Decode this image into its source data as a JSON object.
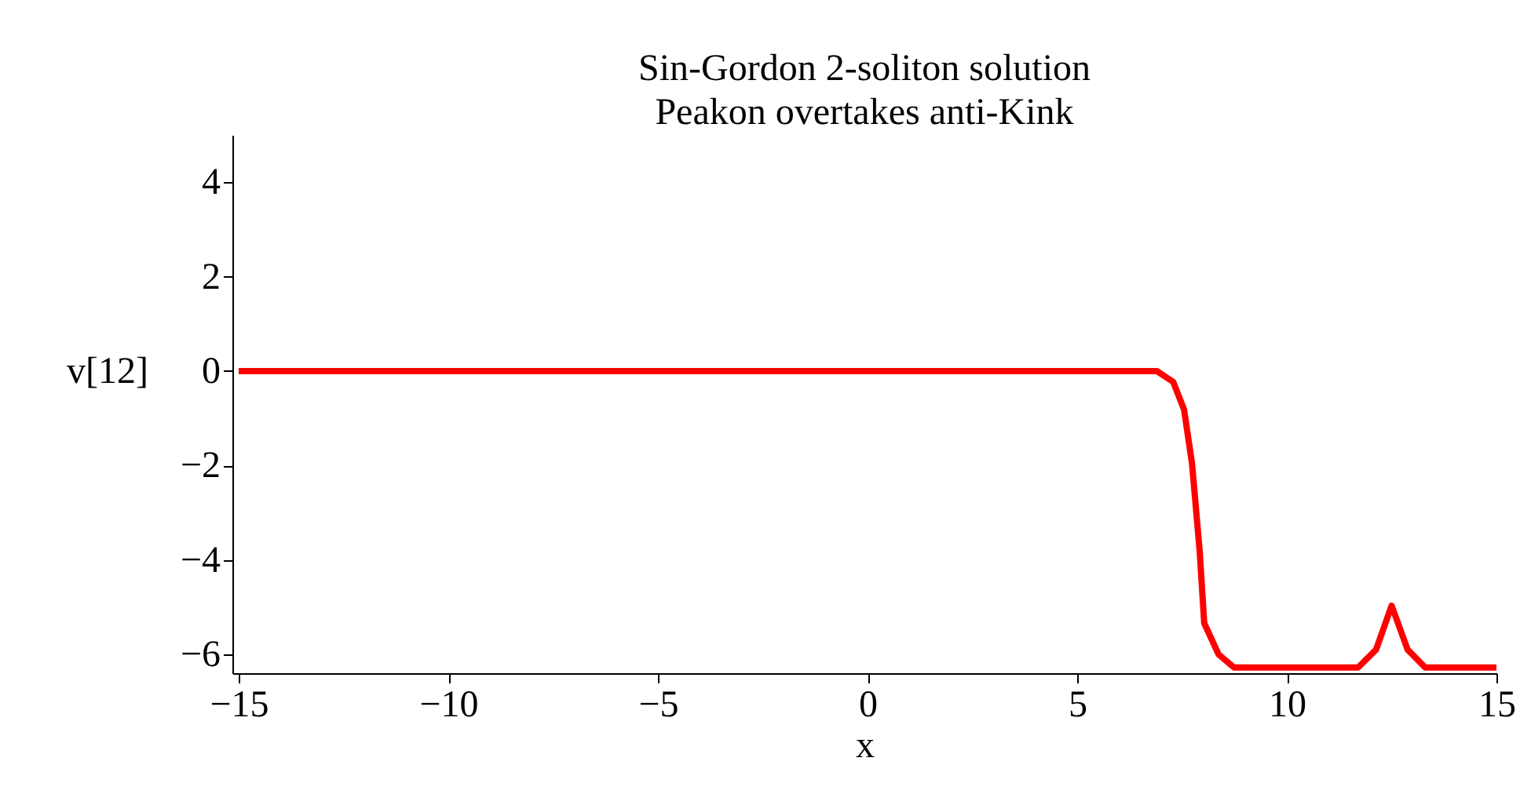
{
  "chart_data": {
    "type": "line",
    "title": [
      "Sin-Gordon 2-soliton solution",
      "Peakon overtakes anti-Kink"
    ],
    "xlabel": "x",
    "ylabel": "v[12]",
    "x": [
      -15,
      6.9,
      7.29,
      7.55,
      7.74,
      7.92,
      8.03,
      8.37,
      8.74,
      11.7,
      12.13,
      12.5,
      12.88,
      13.3,
      15
    ],
    "series": [
      {
        "color": "#ff0000",
        "values": [
          0,
          0,
          -0.23,
          -0.82,
          -1.97,
          -3.8,
          -5.34,
          -6.0,
          -6.28,
          -6.28,
          -5.9,
          -4.97,
          -5.9,
          -6.28,
          -6.28
        ]
      }
    ],
    "xlim": [
      -15.15,
      15
    ],
    "xticks": [
      -15,
      -10,
      -5,
      0,
      5,
      10,
      15
    ],
    "ylim": [
      -6.4,
      5
    ],
    "yticks": [
      -6,
      -4,
      -2,
      0,
      2,
      4
    ],
    "grid": false,
    "legend": false,
    "marker": "none",
    "line_style": "solid"
  }
}
